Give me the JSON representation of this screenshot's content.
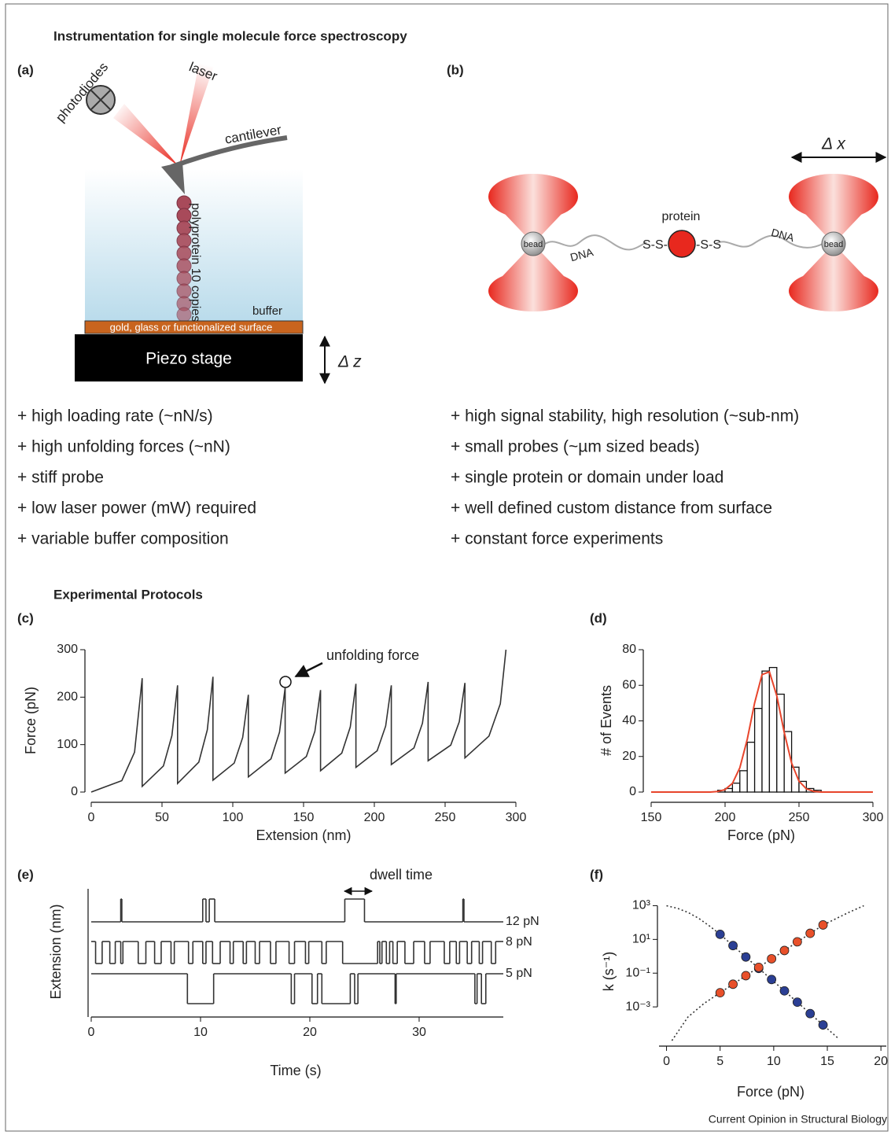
{
  "title": "Instrumentation for single molecule force spectroscopy",
  "panel_a": {
    "label": "(a)",
    "photodiodes": "photodiodes",
    "laser": "laser",
    "cantilever": "cantilever",
    "polyprotein": "polyprotein 10 copies",
    "buffer": "buffer",
    "surface": "gold, glass or functionalized surface",
    "stage": "Piezo stage",
    "dz": "Δ z"
  },
  "panel_b": {
    "label": "(b)",
    "dx": "Δ x",
    "bead_left": "bead",
    "bead_right": "bead",
    "dna_left": "DNA",
    "dna_right": "DNA",
    "protein": "protein",
    "ss_left": "S-S-",
    "ss_right": "-S-S"
  },
  "lists": {
    "left": [
      "+ high loading rate (~nN/s)",
      "+ high unfolding forces (~nN)",
      "+ stiff probe",
      "+ low laser power (mW) required",
      "+ variable buffer composition"
    ],
    "right": [
      "+ high signal stability, high resolution (~sub-nm)",
      "+ small probes (~µm sized beads)",
      "+ single protein or domain under load",
      "+ well defined custom distance from surface",
      "+ constant force experiments"
    ]
  },
  "protocols_title": "Experimental Protocols",
  "chart_data": [
    {
      "type": "line",
      "label": "(c)",
      "xlabel": "Extension (nm)",
      "ylabel": "Force (pN)",
      "annotation": "unfolding force",
      "color": "#333333",
      "x": [
        0,
        21.6,
        30.6,
        36,
        36,
        51,
        57,
        61,
        61,
        76,
        82,
        86,
        86,
        101,
        107,
        111,
        111,
        127,
        133,
        137,
        137,
        152,
        158,
        162,
        162,
        177,
        183,
        187,
        187,
        202,
        208,
        212,
        212,
        228,
        234,
        238,
        238,
        254,
        260,
        264,
        264,
        281,
        289,
        293
      ],
      "values": [
        0,
        24,
        84,
        240,
        12,
        55,
        119,
        225,
        18,
        63,
        131,
        243,
        25,
        61,
        115,
        205,
        32,
        70,
        126,
        220,
        40,
        75,
        128,
        215,
        45,
        82,
        137,
        228,
        52,
        87,
        139,
        225,
        58,
        93,
        145,
        232,
        66,
        99,
        148,
        230,
        72,
        118,
        186,
        300
      ],
      "xlim": [
        0,
        300
      ],
      "ylim": [
        0,
        300
      ],
      "xticks": [
        0,
        50,
        100,
        150,
        200,
        250,
        300
      ],
      "yticks": [
        0,
        100,
        200,
        300
      ]
    },
    {
      "type": "histogram",
      "label": "(d)",
      "xlabel": "Force (pN)",
      "ylabel": "# of Events",
      "color": "#ffffff",
      "bins": [
        195,
        200,
        205,
        210,
        215,
        220,
        225,
        230,
        235,
        240,
        245,
        250,
        255,
        260,
        265
      ],
      "values": [
        1,
        2,
        5,
        12,
        28,
        47,
        68,
        70,
        55,
        34,
        14,
        6,
        2,
        1
      ],
      "fit": {
        "color": "#e8452c",
        "x": [
          150,
          155,
          160,
          165,
          170,
          175,
          180,
          185,
          190,
          195,
          200,
          205,
          210,
          215,
          220,
          225,
          230,
          235,
          240,
          245,
          250,
          255,
          260,
          265,
          270,
          275,
          280,
          285,
          290,
          295,
          300
        ],
        "values": [
          0,
          0,
          0,
          0,
          0,
          0,
          0,
          0,
          0,
          0.3,
          1.4,
          4.9,
          13.7,
          29.6,
          50.1,
          66,
          67.6,
          54,
          33.6,
          16.3,
          6.1,
          1.8,
          0.4,
          0,
          0,
          0,
          0,
          0,
          0,
          0,
          0
        ]
      },
      "xlim": [
        150,
        300
      ],
      "ylim": [
        0,
        80
      ],
      "xticks": [
        150,
        200,
        250,
        300
      ],
      "yticks": [
        0,
        20,
        40,
        60,
        80
      ]
    },
    {
      "type": "step",
      "label": "(e)",
      "xlabel": "Time (s)",
      "ylabel": "Extension (nm)",
      "annotation": "dwell time",
      "color": "#333333",
      "series": [
        {
          "name": "12 pN",
          "x": [
            0,
            2.7,
            2.8,
            10.2,
            10.5,
            10.8,
            11.3,
            23.2,
            25.0,
            34.0,
            34.1
          ],
          "values": [
            0,
            1,
            0,
            1,
            0,
            1,
            0,
            1,
            0,
            1,
            0
          ]
        },
        {
          "name": "8 pN",
          "x": [
            0,
            0.4,
            1.0,
            1.7,
            2.2,
            2.7,
            2.9,
            4.3,
            5.0,
            5.8,
            6.4,
            7.3,
            7.6,
            8.9,
            9.3,
            10.2,
            10.5,
            11.1,
            11.8,
            12.7,
            13.0,
            13.9,
            14.2,
            15.0,
            15.4,
            16.4,
            16.9,
            18.1,
            18.6,
            19.6,
            19.9,
            21.1,
            21.5,
            23.0,
            26.2,
            26.4,
            26.6,
            27.0,
            27.3,
            27.6,
            28.0,
            28.7,
            29.5,
            30.5,
            31.0,
            32.3,
            32.8,
            33.4,
            33.7,
            34.4,
            34.8,
            35.5,
            35.8,
            36.6,
            37.0
          ],
          "values": [
            1,
            0,
            1,
            0,
            1,
            0,
            1,
            0,
            1,
            0,
            1,
            0,
            1,
            0,
            1,
            0,
            1,
            0,
            1,
            0,
            1,
            0,
            1,
            0,
            1,
            0,
            1,
            0,
            1,
            0,
            1,
            0,
            1,
            0,
            1,
            0,
            1,
            0,
            1,
            0,
            1,
            0,
            1,
            0,
            1,
            0,
            1,
            0,
            1,
            0,
            1,
            0,
            1,
            0,
            1
          ]
        },
        {
          "name": "5 pN",
          "x": [
            0,
            8.8,
            11.2,
            18.3,
            18.6,
            20.2,
            20.7,
            21.1,
            23.7,
            24.1,
            24.4,
            27.8,
            27.9,
            35.1,
            35.3,
            35.7,
            36.1
          ],
          "values": [
            1,
            0,
            1,
            0,
            1,
            0,
            1,
            0,
            1,
            0,
            1,
            0,
            1,
            0,
            1,
            0,
            1
          ]
        }
      ],
      "xlim": [
        0,
        37.7
      ],
      "xticks": [
        0,
        10,
        20,
        30
      ]
    },
    {
      "type": "scatter",
      "label": "(f)",
      "xlabel": "Force (pN)",
      "ylabel": "k (s⁻¹)",
      "ylog": true,
      "series": [
        {
          "color": "#2b3f94",
          "x": [
            5,
            6.2,
            7.4,
            8.6,
            9.8,
            11,
            12.2,
            13.4,
            14.6
          ],
          "values": [
            20,
            4.3,
            0.91,
            0.19,
            0.042,
            0.0089,
            0.0019,
            0.0004,
            8.5e-05
          ],
          "fit": {
            "x": [
              0,
              1,
              2,
              3,
              4,
              5,
              8,
              11,
              14.6,
              16
            ],
            "values": [
              1000,
              708,
              398,
              178,
              63,
              20,
              0.42,
              0.0089,
              8.5e-05,
              1.4e-05
            ]
          }
        },
        {
          "color": "#e8502a",
          "x": [
            5,
            6.2,
            7.4,
            8.6,
            9.8,
            11,
            12.2,
            13.4,
            14.6
          ],
          "values": [
            0.0069,
            0.022,
            0.071,
            0.22,
            0.71,
            2.2,
            7.2,
            23,
            72
          ],
          "fit": {
            "x": [
              0.5,
              2,
              3.5,
              5,
              8,
              11,
              14.6,
              17,
              18.4
            ],
            "values": [
              1e-05,
              0.00025,
              0.0016,
              0.0069,
              0.126,
              2.2,
              72,
              398,
              1000
            ]
          }
        }
      ],
      "xlim": [
        -0.7,
        20.5
      ],
      "ylim": [
        1e-05,
        2000
      ],
      "xticks": [
        0,
        5,
        10,
        15,
        20
      ],
      "yticks": [
        {
          "value": 0.001,
          "label": "10⁻³"
        },
        {
          "value": 0.1,
          "label": "10⁻¹"
        },
        {
          "value": 10,
          "label": "10¹"
        },
        {
          "value": 1000,
          "label": "10³"
        }
      ]
    }
  ],
  "footer": "Current Opinion in Structural Biology"
}
